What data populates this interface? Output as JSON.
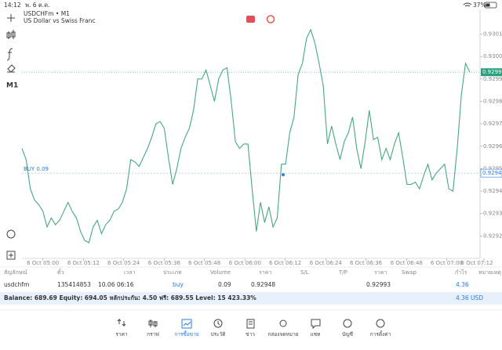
{
  "status_bar": {
    "time": "14:12",
    "date": "พ. 6 ต.ค.",
    "battery": "37%"
  },
  "toolbar": {
    "timeframe": "M1"
  },
  "chart_data": {
    "type": "line",
    "title": "USDCHFm • M1",
    "subtitle": "US Dollar vs Swiss Franc",
    "color": "#46a97f",
    "values": [
      0.92959,
      0.92954,
      0.92941,
      0.92936,
      0.92934,
      0.92931,
      0.92924,
      0.92928,
      0.92925,
      0.92927,
      0.92931,
      0.92935,
      0.92931,
      0.92928,
      0.92922,
      0.92918,
      0.92917,
      0.92924,
      0.92927,
      0.92921,
      0.92925,
      0.92927,
      0.92931,
      0.92932,
      0.92935,
      0.92941,
      0.92954,
      0.92953,
      0.92951,
      0.92955,
      0.92959,
      0.92964,
      0.9297,
      0.92971,
      0.92968,
      0.92955,
      0.92943,
      0.9295,
      0.92959,
      0.92964,
      0.92968,
      0.92976,
      0.9299,
      0.9299,
      0.92994,
      0.92987,
      0.9298,
      0.9299,
      0.92994,
      0.92995,
      0.9298,
      0.92962,
      0.92959,
      0.92961,
      0.92961,
      0.92941,
      0.92922,
      0.92935,
      0.92926,
      0.92933,
      0.92924,
      0.92928,
      0.92952,
      0.92952,
      0.92966,
      0.92973,
      0.92992,
      0.92997,
      0.93008,
      0.93012,
      0.93006,
      0.92997,
      0.92987,
      0.92961,
      0.92969,
      0.92961,
      0.92954,
      0.92962,
      0.92966,
      0.92973,
      0.92959,
      0.9295,
      0.92962,
      0.92976,
      0.92963,
      0.92964,
      0.92954,
      0.92959,
      0.92954,
      0.92961,
      0.92966,
      0.92955,
      0.92943,
      0.92943,
      0.92944,
      0.92941,
      0.92947,
      0.92952,
      0.92945,
      0.92948,
      0.9295,
      0.92952,
      0.92941,
      0.9294,
      0.92959,
      0.92983,
      0.92997,
      0.92993
    ],
    "xlim": [
      0,
      110.4
    ],
    "xticks": [
      {
        "value": 5.0,
        "label": "6 Oct 05:00"
      },
      {
        "value": 14.7,
        "label": "6 Oct 05:12"
      },
      {
        "value": 24.3,
        "label": "6 Oct 05:24"
      },
      {
        "value": 34.0,
        "label": "6 Oct 05:36"
      },
      {
        "value": 43.6,
        "label": "6 Oct 05:48"
      },
      {
        "value": 53.3,
        "label": "6 Oct 06:00"
      },
      {
        "value": 62.9,
        "label": "6 Oct 06:12"
      },
      {
        "value": 72.6,
        "label": "6 Oct 06:24"
      },
      {
        "value": 82.2,
        "label": "6 Oct 06:36"
      },
      {
        "value": 91.9,
        "label": "6 Oct 06:48"
      },
      {
        "value": 101.5,
        "label": "6 Oct 07:00"
      },
      {
        "value": 110.4,
        "label": "6 Oct 07:12"
      }
    ],
    "ylim": [
      0.9291,
      0.93021
    ],
    "yticks": [
      {
        "value": 0.9292,
        "label": "0.92920"
      },
      {
        "value": 0.9293,
        "label": "0.92930"
      },
      {
        "value": 0.9294,
        "label": "0.92940"
      },
      {
        "value": 0.9295,
        "label": "0.92950"
      },
      {
        "value": 0.9296,
        "label": "0.92960"
      },
      {
        "value": 0.9297,
        "label": "0.92970"
      },
      {
        "value": 0.9298,
        "label": "0.92980"
      },
      {
        "value": 0.9299,
        "label": "0.92990"
      },
      {
        "value": 0.93,
        "label": "0.93000"
      },
      {
        "value": 0.9301,
        "label": "0.93010"
      }
    ],
    "current_price": 0.92993,
    "order_price": 0.92948,
    "order_label": "BUY 0.09"
  },
  "positions_table": {
    "headers": [
      "สัญลักษณ์",
      "ตั๋ว",
      "เวลา",
      "ประเภท",
      "Volume",
      "ราคา",
      "S/L",
      "T/P",
      "ราคา",
      "Swap",
      "กำไร",
      "หมายเหตุ"
    ],
    "row": {
      "symbol": "usdchfm",
      "ticket": 135414853,
      "time": "10.06 06:16",
      "type": "buy",
      "volume": 0.09,
      "open_price": 0.92948,
      "price": 0.92993,
      "profit": 4.36
    }
  },
  "summary": {
    "text": "Balance: 689.69 Equity: 694.05 หลักประกัน: 4.50 ฟรี: 689.55 Level: 15 423.33%",
    "profit": 4.36,
    "currency": "USD"
  },
  "nav": [
    "ราคา",
    "กราฟ",
    "การซื้อขาย",
    "ประวัติ",
    "ข่าว",
    "กล่องจดหมาย",
    "แชท",
    "บัญชี",
    "การตั้งค่า"
  ]
}
